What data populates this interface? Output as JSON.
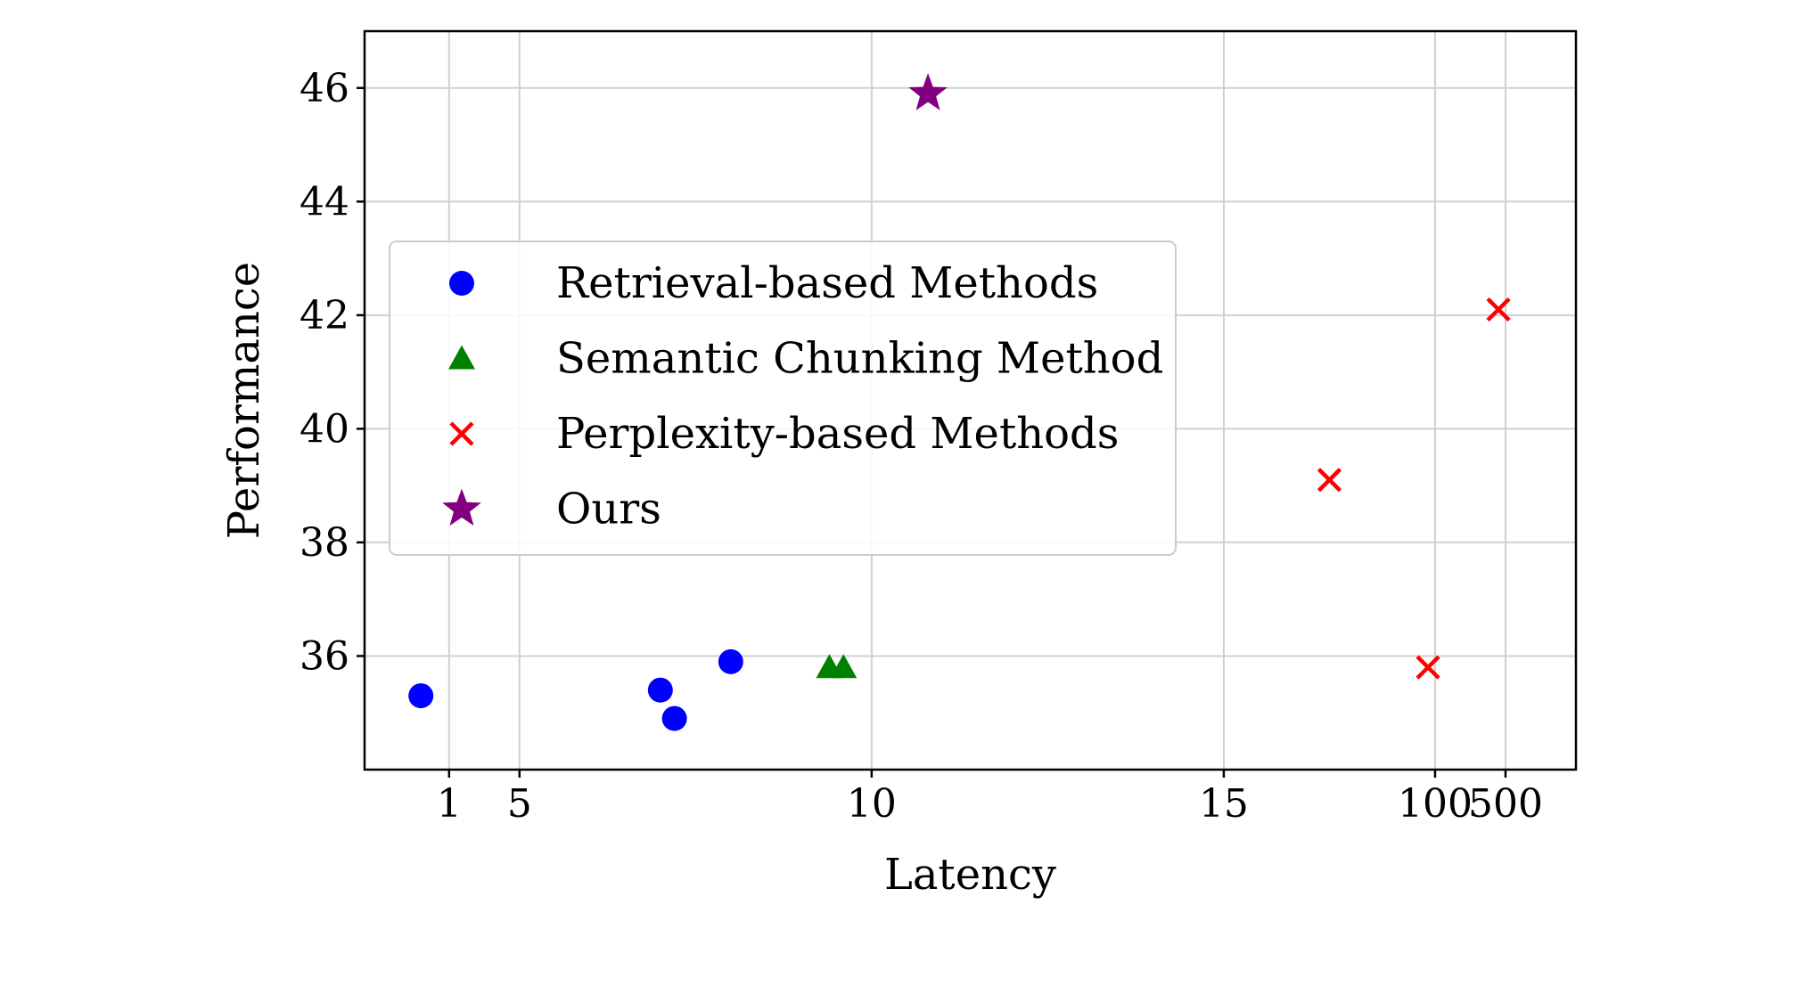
{
  "chart_data": {
    "type": "scatter",
    "title": "",
    "xlabel": "Latency",
    "ylabel": "Performance",
    "xlim": [
      -1.2,
      16
    ],
    "ylim": [
      34,
      47
    ],
    "grid": true,
    "legend_position": "center-left",
    "x_ticks": [
      {
        "pos": 0,
        "label": "1"
      },
      {
        "pos": 1,
        "label": "5"
      },
      {
        "pos": 6,
        "label": "10"
      },
      {
        "pos": 11,
        "label": "15"
      },
      {
        "pos": 14,
        "label": "100"
      },
      {
        "pos": 15,
        "label": "500"
      }
    ],
    "y_ticks": [
      36,
      38,
      40,
      42,
      44,
      46
    ],
    "series": [
      {
        "name": "Retrieval-based Methods",
        "marker": "circle",
        "color": "#0000ff",
        "points": [
          [
            -0.4,
            35.3
          ],
          [
            3.0,
            35.4
          ],
          [
            3.2,
            34.9
          ],
          [
            4.0,
            35.9
          ]
        ]
      },
      {
        "name": "Semantic Chunking Method",
        "marker": "triangle",
        "color": "#008000",
        "points": [
          [
            5.4,
            35.8
          ],
          [
            5.6,
            35.8
          ]
        ]
      },
      {
        "name": "Perplexity-based Methods",
        "marker": "x",
        "color": "#ff0000",
        "points": [
          [
            12.5,
            39.1
          ],
          [
            13.9,
            35.8
          ],
          [
            14.9,
            42.1
          ]
        ]
      },
      {
        "name": "Ours",
        "marker": "star",
        "color": "#800080",
        "points": [
          [
            6.8,
            45.9
          ]
        ]
      }
    ]
  }
}
